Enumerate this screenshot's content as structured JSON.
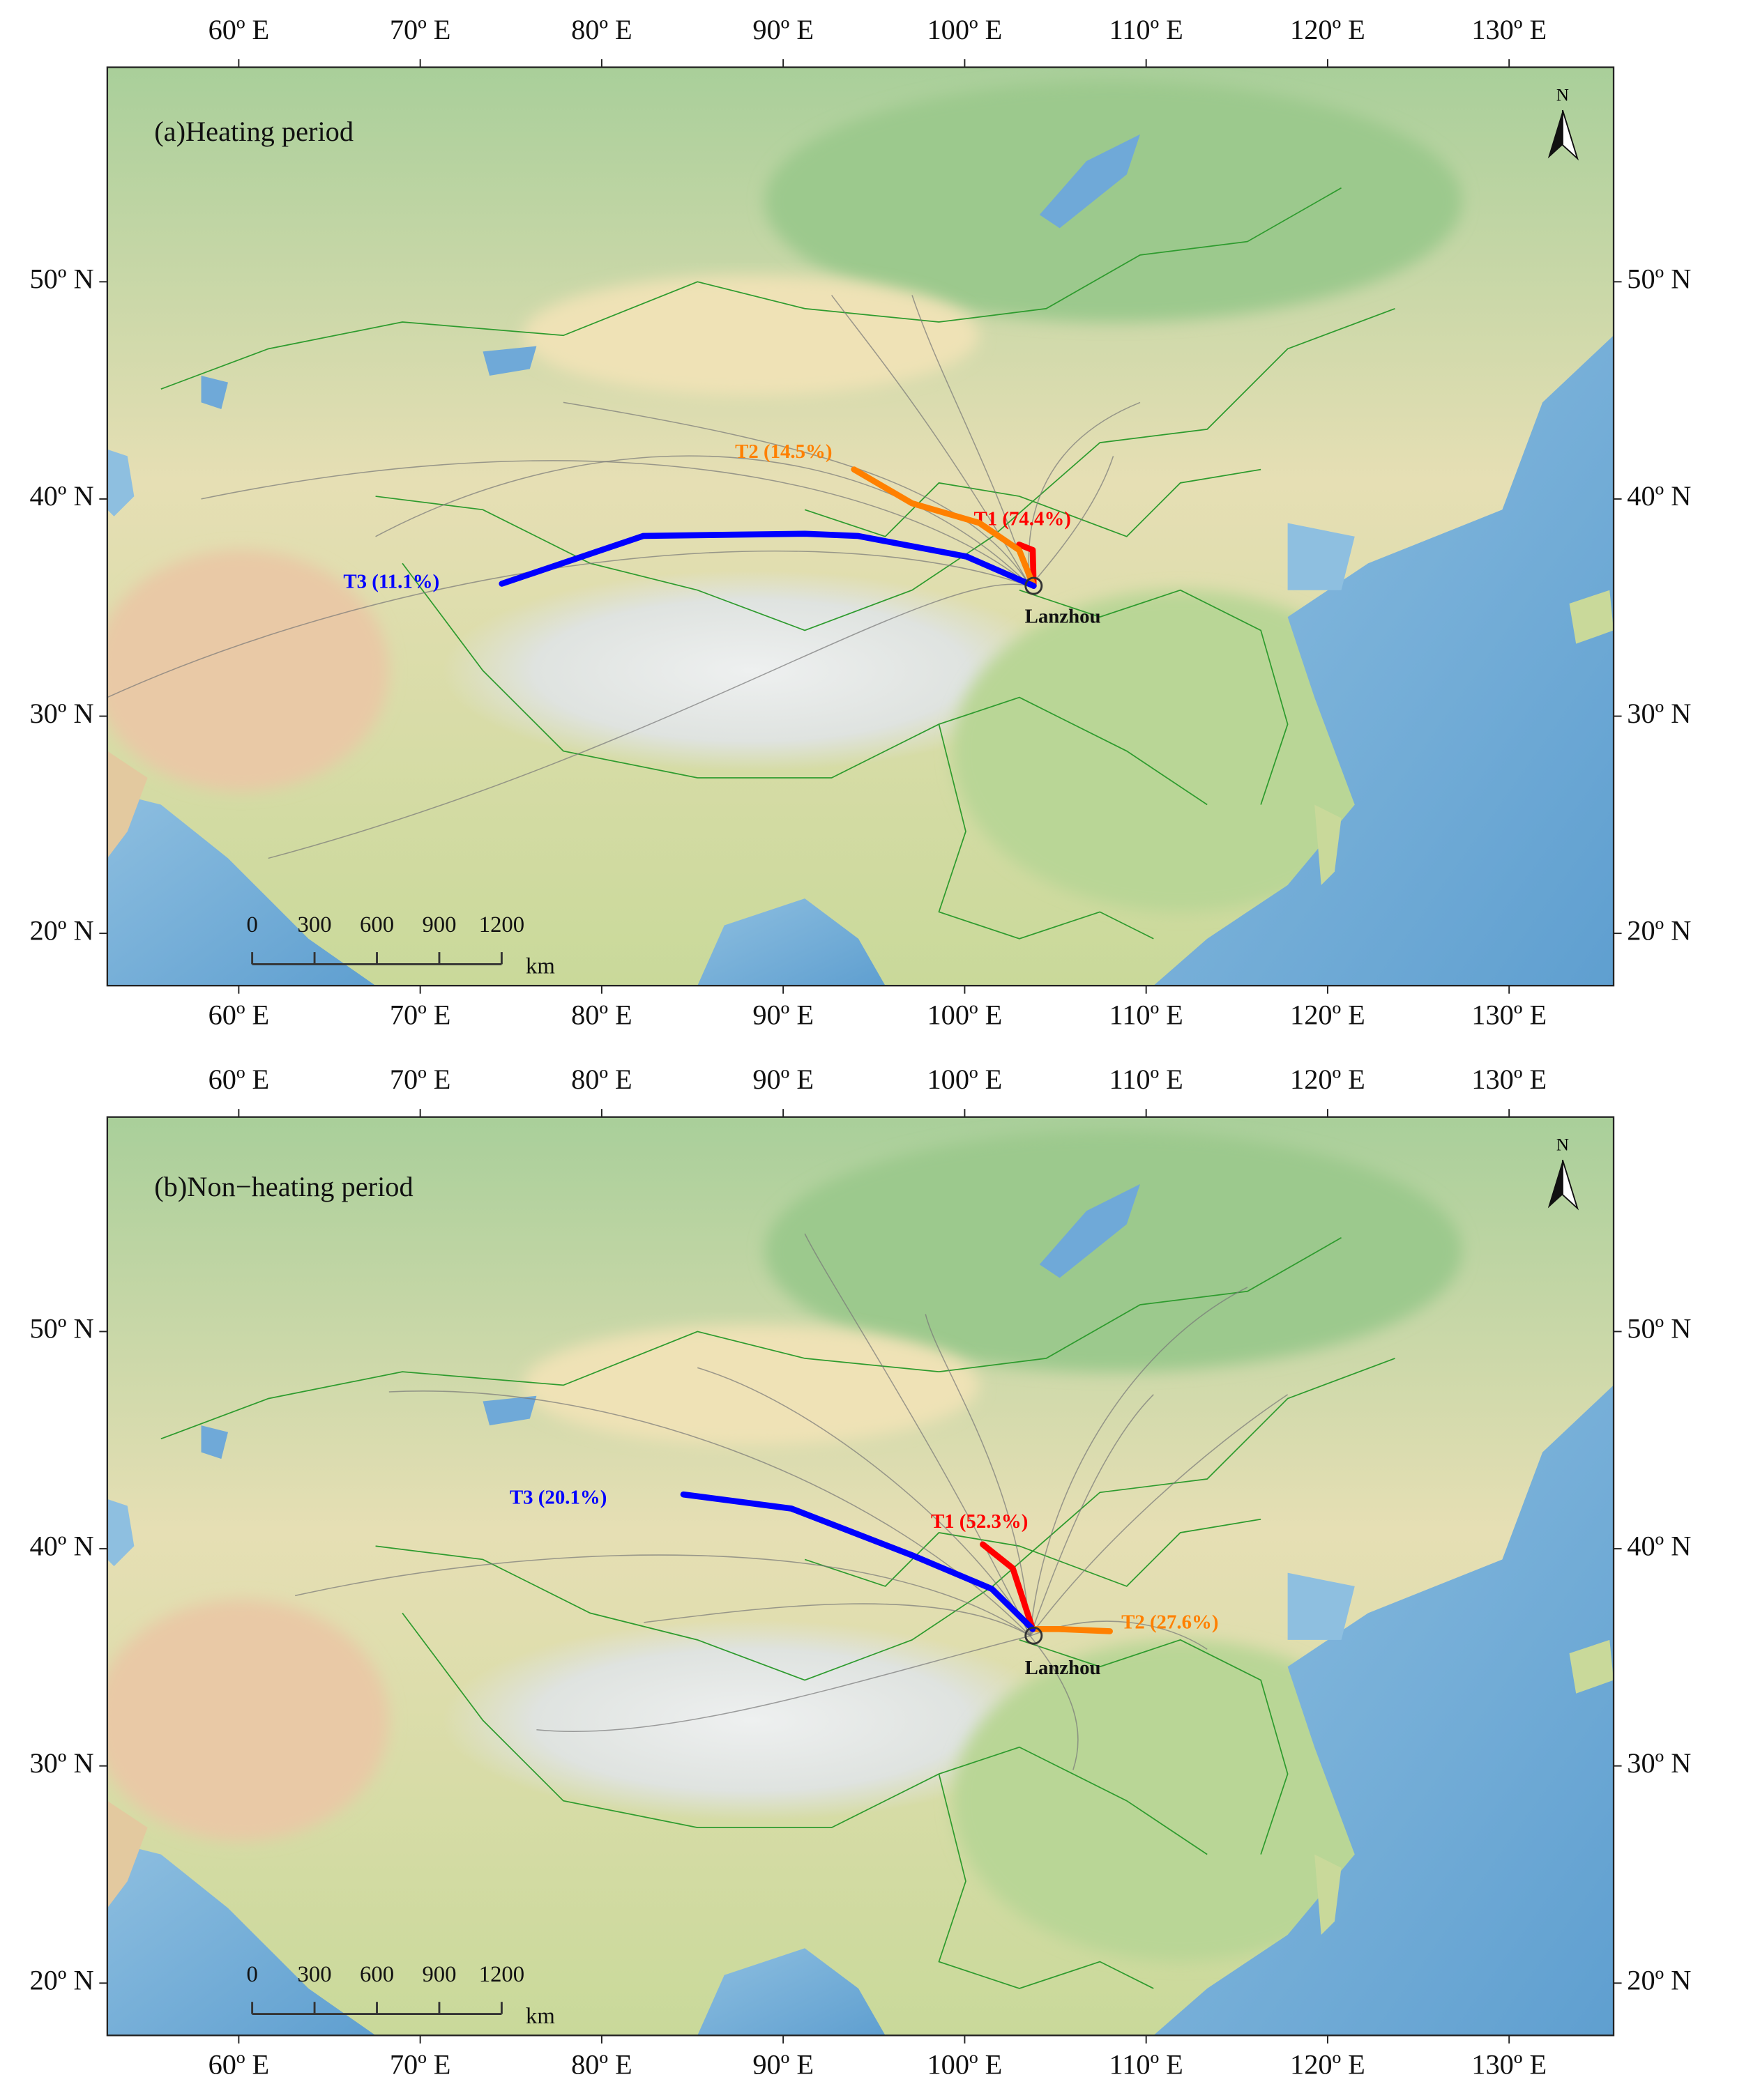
{
  "panels": [
    {
      "title": "(a)Heating period",
      "clusters": [
        {
          "name": "T1 (74.4%)",
          "color": "#ff0000",
          "lon": [
            103.8,
            103.75,
            103.0
          ],
          "lat": [
            36.0,
            37.65,
            37.9
          ]
        },
        {
          "name": "T2 (14.5%)",
          "color": "#ff8000",
          "lon": [
            103.8,
            103.0,
            100.8,
            97.1,
            93.9
          ],
          "lat": [
            36.0,
            37.65,
            38.9,
            39.8,
            41.36
          ]
        },
        {
          "name": "T3 (11.1%)",
          "color": "#0000ff",
          "lon": [
            103.8,
            100.1,
            94.1,
            91.2,
            82.3,
            74.5
          ],
          "lat": [
            36.0,
            37.35,
            38.3,
            38.4,
            38.3,
            36.1
          ]
        }
      ],
      "site": {
        "name": "Lanzhou",
        "lon": 103.8,
        "lat": 36.0
      }
    },
    {
      "title": "(b)Non−heating period",
      "clusters": [
        {
          "name": "T1 (52.3%)",
          "color": "#ff0000",
          "lon": [
            103.75,
            102.65,
            101.0
          ],
          "lat": [
            36.3,
            39.1,
            40.2
          ]
        },
        {
          "name": "T2 (27.6%)",
          "color": "#ff8000",
          "lon": [
            103.75,
            105.2,
            108.0
          ],
          "lat": [
            36.3,
            36.3,
            36.2
          ]
        },
        {
          "name": "T3 (20.1%)",
          "color": "#0000ff",
          "lon": [
            103.75,
            101.5,
            97.1,
            90.45,
            84.5
          ],
          "lat": [
            36.3,
            38.15,
            39.7,
            41.85,
            42.5
          ]
        }
      ],
      "site": {
        "name": "Lanzhou",
        "lon": 103.8,
        "lat": 36.0
      }
    }
  ],
  "xticks": [
    {
      "value": 60,
      "label": "60º E"
    },
    {
      "value": 70,
      "label": "70º E"
    },
    {
      "value": 80,
      "label": "80º E"
    },
    {
      "value": 90,
      "label": "90º E"
    },
    {
      "value": 100,
      "label": "100º E"
    },
    {
      "value": 110,
      "label": "110º E"
    },
    {
      "value": 120,
      "label": "120º E"
    },
    {
      "value": 130,
      "label": "130º E"
    }
  ],
  "yticks": [
    {
      "value": 50,
      "label": "50º N"
    },
    {
      "value": 40,
      "label": "40º N"
    },
    {
      "value": 30,
      "label": "30º N"
    },
    {
      "value": 20,
      "label": "20º N"
    }
  ],
  "scale_bar": {
    "ticks": [
      0,
      300,
      600,
      900,
      1200
    ],
    "unit": "km"
  },
  "north": "N"
}
